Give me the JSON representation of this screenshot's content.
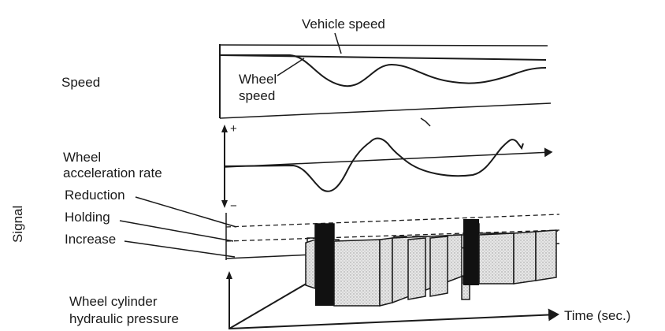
{
  "labels": {
    "vehicle_speed": "Vehicle speed",
    "wheel_speed_line1": "Wheel",
    "wheel_speed_line2": "speed",
    "speed": "Speed",
    "wheel_accel_line1": "Wheel",
    "wheel_accel_line2": "acceleration rate",
    "plus": "+",
    "minus": "−",
    "reduction": "Reduction",
    "holding": "Holding",
    "increase": "Increase",
    "signal": "Signal",
    "cylinder_line1": "Wheel cylinder",
    "cylinder_line2": "hydraulic pressure",
    "time": "Time (sec.)"
  },
  "colors": {
    "ink": "#1a1a1a",
    "stipple": "#bdbdbd",
    "background": "#ffffff"
  }
}
